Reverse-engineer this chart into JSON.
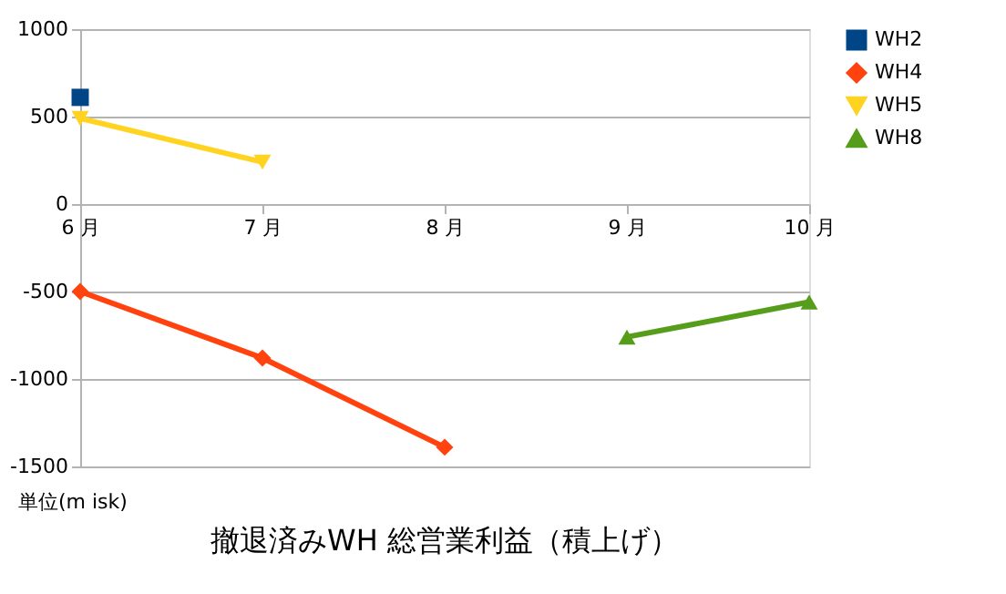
{
  "chart_data": {
    "type": "line",
    "title": "撤退済みWH 総営業利益（積上げ）",
    "annotations": [
      "単位(m isk)"
    ],
    "categories": [
      "6 月",
      "7 月",
      "8 月",
      "9 月",
      "10 月"
    ],
    "series": [
      {
        "name": "WH2",
        "color": "#004586",
        "marker": "square",
        "values": [
          610,
          null,
          null,
          null,
          null
        ]
      },
      {
        "name": "WH4",
        "color": "#ff420e",
        "marker": "diamond",
        "values": [
          -500,
          -880,
          -1390,
          null,
          null
        ]
      },
      {
        "name": "WH5",
        "color": "#ffd320",
        "marker": "triangle-down",
        "values": [
          490,
          240,
          null,
          null,
          null
        ]
      },
      {
        "name": "WH8",
        "color": "#579d1c",
        "marker": "triangle-up",
        "values": [
          null,
          null,
          null,
          -760,
          -560
        ]
      }
    ],
    "ylim": [
      -1500,
      1000
    ],
    "yticks": [
      -1500,
      -1000,
      -500,
      0,
      500,
      1000
    ],
    "grid": "y",
    "legend": "right"
  }
}
